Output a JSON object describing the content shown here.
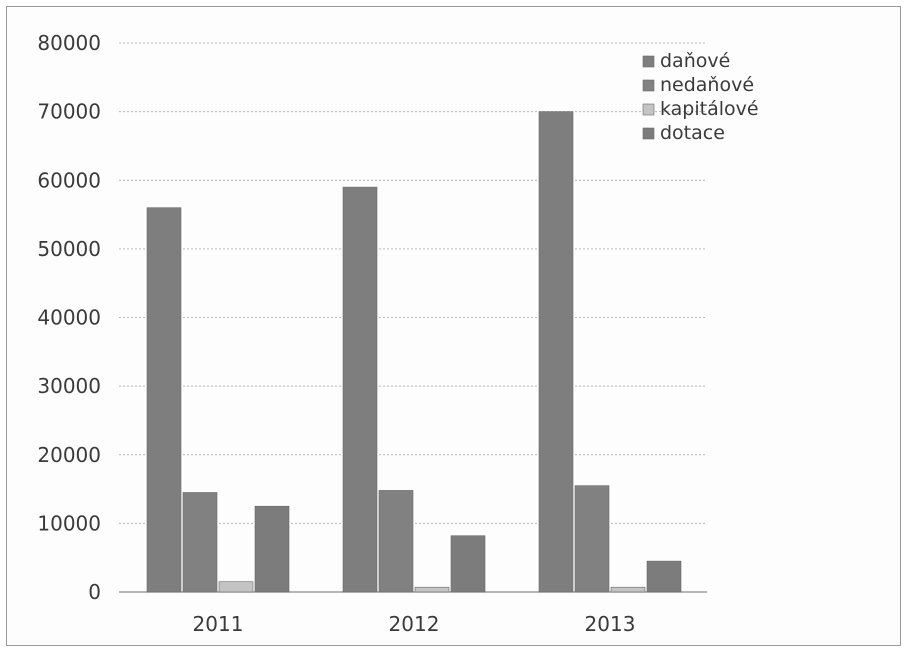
{
  "chart_data": {
    "type": "bar",
    "categories": [
      "2011",
      "2012",
      "2013"
    ],
    "series": [
      {
        "name": "daňové",
        "color": "#7e7e7e",
        "values": [
          56000,
          59000,
          70000
        ]
      },
      {
        "name": "nedaňové",
        "color": "#818181",
        "values": [
          14500,
          14800,
          15500
        ]
      },
      {
        "name": "kapitálové",
        "color": "#c4c4c4",
        "values": [
          1500,
          700,
          700
        ]
      },
      {
        "name": "dotace",
        "color": "#7c7c7c",
        "values": [
          12500,
          8200,
          4500
        ]
      }
    ],
    "y_ticks": [
      "0",
      "10000",
      "20000",
      "30000",
      "40000",
      "50000",
      "60000",
      "70000",
      "80000"
    ],
    "ylim": [
      0,
      80000
    ],
    "grid": true,
    "legend_position": "top-right",
    "title": "",
    "xlabel": "",
    "ylabel": ""
  }
}
